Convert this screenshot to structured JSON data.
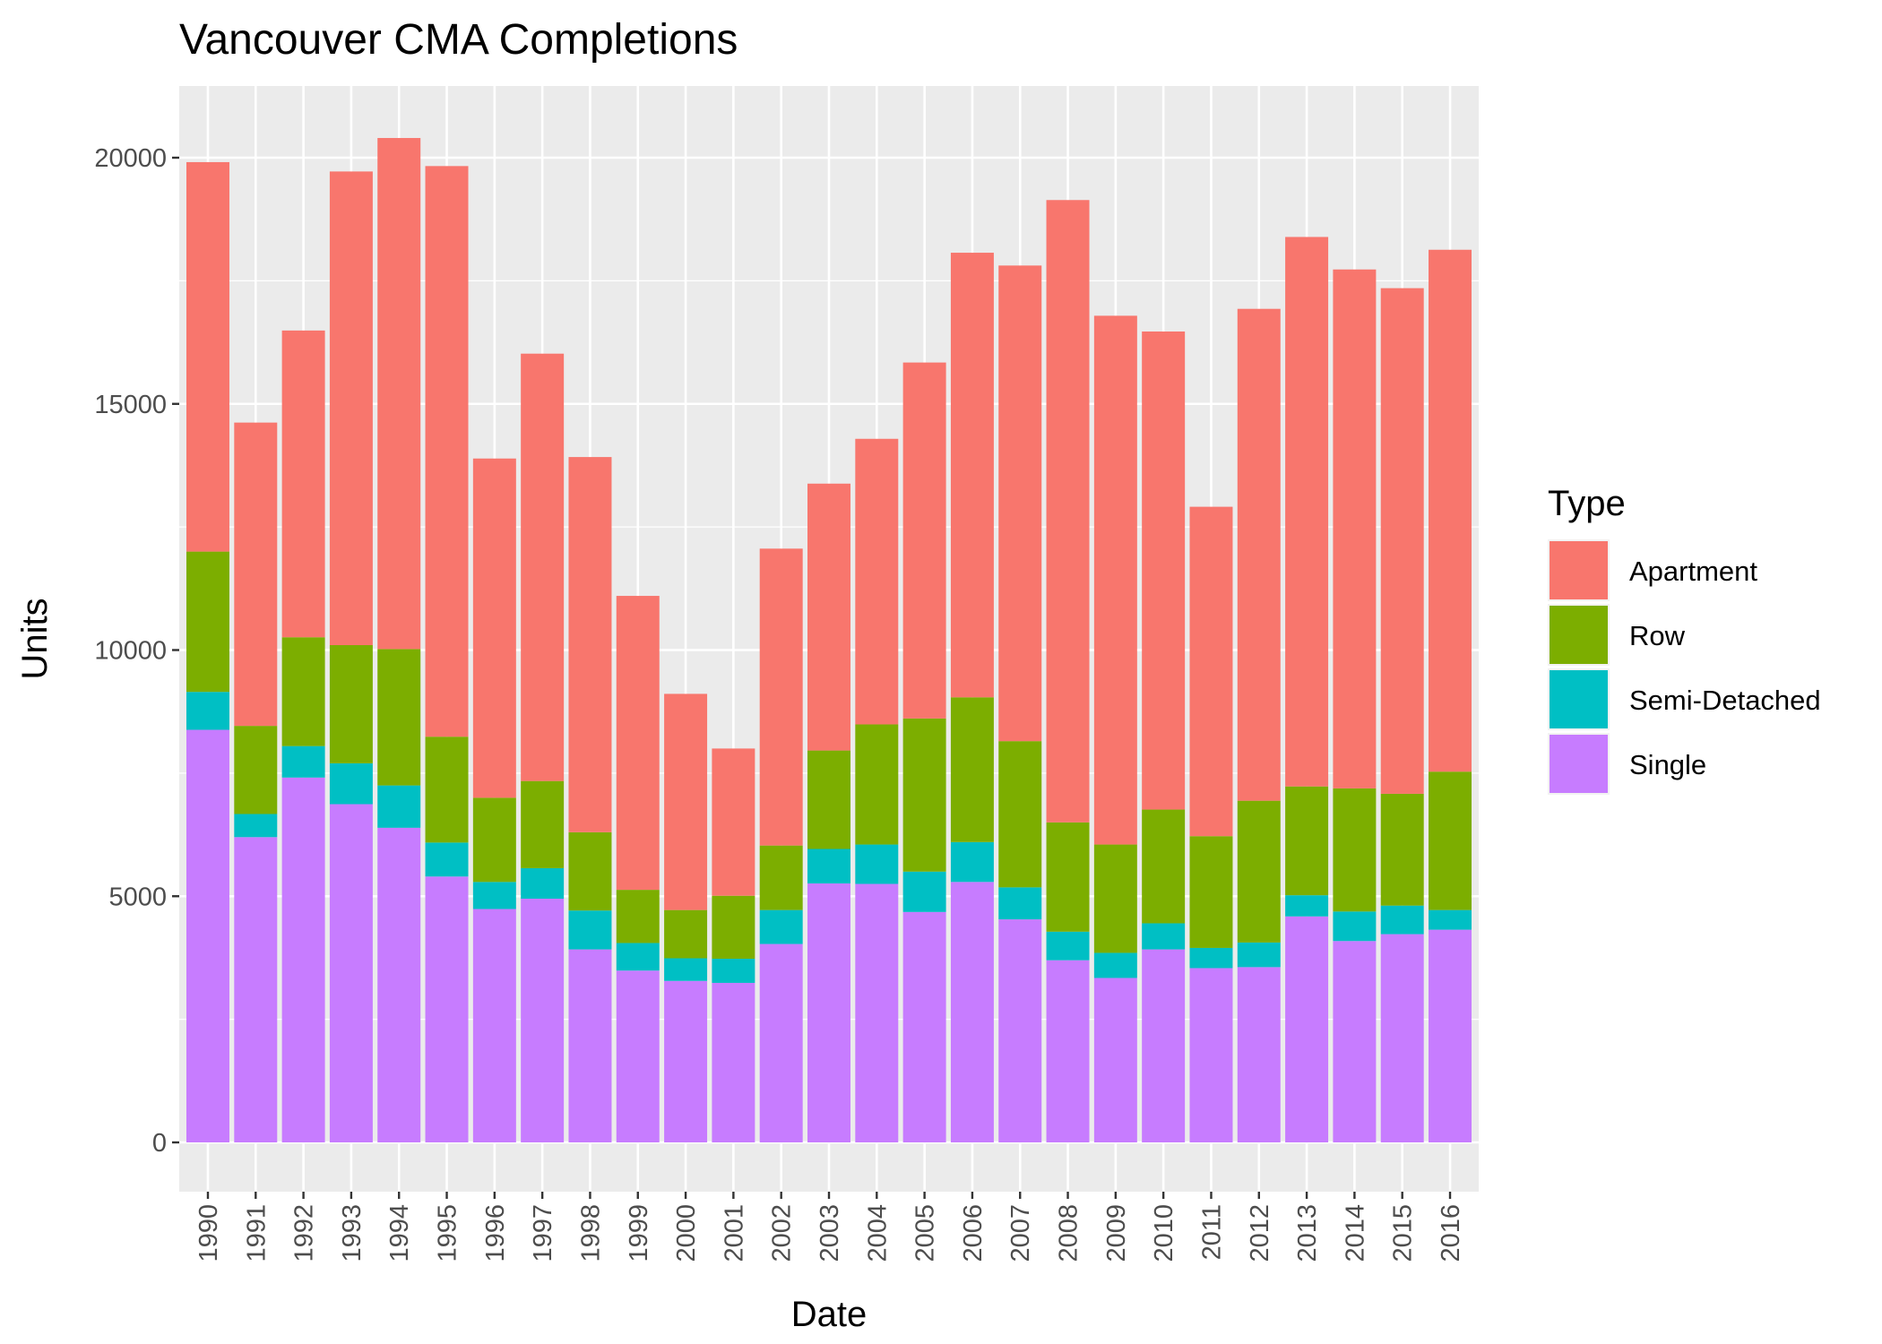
{
  "chart_data": {
    "type": "bar",
    "stacked": true,
    "title": "Vancouver CMA Completions",
    "xlabel": "Date",
    "ylabel": "Units",
    "ylim": [
      -1000,
      21500
    ],
    "yticks": [
      0,
      5000,
      10000,
      15000,
      20000
    ],
    "ytick_labels": [
      "0",
      "5000",
      "10000",
      "15000",
      "20000"
    ],
    "grid": true,
    "legend": {
      "title": "Type",
      "position": "right"
    },
    "categories": [
      "1990",
      "1991",
      "1992",
      "1993",
      "1994",
      "1995",
      "1996",
      "1997",
      "1998",
      "1999",
      "2000",
      "2001",
      "2002",
      "2003",
      "2004",
      "2005",
      "2006",
      "2007",
      "2008",
      "2009",
      "2010",
      "2011",
      "2012",
      "2013",
      "2014",
      "2015",
      "2016"
    ],
    "series": [
      {
        "name": "Single",
        "color": "#C77CFF",
        "values": [
          8380,
          6200,
          7410,
          6870,
          6390,
          5400,
          4740,
          4950,
          3920,
          3490,
          3280,
          3240,
          4030,
          5260,
          5250,
          4680,
          5290,
          4530,
          3700,
          3340,
          3920,
          3540,
          3560,
          4590,
          4090,
          4230,
          4320
        ]
      },
      {
        "name": "Semi-Detached",
        "color": "#00BFC4",
        "values": [
          770,
          470,
          640,
          830,
          860,
          690,
          550,
          620,
          790,
          560,
          460,
          490,
          690,
          700,
          800,
          820,
          810,
          650,
          580,
          510,
          530,
          410,
          500,
          430,
          600,
          580,
          400
        ]
      },
      {
        "name": "Row",
        "color": "#7CAE00",
        "values": [
          2850,
          1790,
          2210,
          2400,
          2770,
          2150,
          1710,
          1770,
          1590,
          1080,
          980,
          1280,
          1310,
          2000,
          2440,
          3110,
          2940,
          2970,
          2220,
          2200,
          2310,
          2270,
          2880,
          2210,
          2500,
          2270,
          2810
        ]
      },
      {
        "name": "Apartment",
        "color": "#F8766D",
        "values": [
          7910,
          6160,
          6230,
          9620,
          10380,
          11590,
          6890,
          8680,
          7620,
          5970,
          4390,
          2990,
          6030,
          5420,
          5800,
          7230,
          9030,
          9660,
          12640,
          10740,
          9710,
          6690,
          9990,
          11160,
          10540,
          10270,
          10600
        ]
      }
    ],
    "legend_order": [
      "Apartment",
      "Row",
      "Semi-Detached",
      "Single"
    ]
  }
}
